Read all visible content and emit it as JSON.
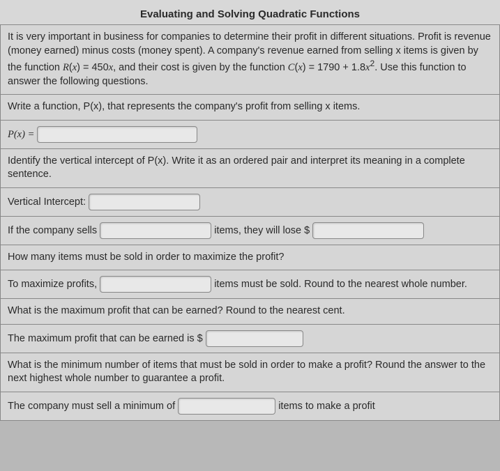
{
  "title": "Evaluating and Solving Quadratic Functions",
  "intro": "It is very important in business for companies to determine their profit in different situations. Profit is revenue (money earned) minus costs (money spent). A company's revenue earned from selling x items is given by the function R(x) = 450x, and their cost is given by the function C(x) = 1790 + 1.8x². Use this function to answer the following questions.",
  "q1": {
    "prompt": "Write a function, P(x), that represents the company's profit from selling x items.",
    "label": "P(x) ="
  },
  "q2": {
    "prompt": "Identify the vertical intercept of P(x). Write it as an ordered pair and interpret its meaning in a complete sentence.",
    "label": "Vertical Intercept:",
    "sentence_a": "If the company sells",
    "sentence_b": "items, they will lose $"
  },
  "q3": {
    "prompt": "How many items must be sold in order to maximize the profit?",
    "sentence_a": "To maximize profits,",
    "sentence_b": "items must be sold. Round to the nearest whole number."
  },
  "q4": {
    "prompt": "What is the maximum profit that can be earned? Round to the nearest cent.",
    "sentence_a": "The maximum profit that can be earned is $"
  },
  "q5": {
    "prompt": "What is the minimum number of items that must be sold in order to make a profit? Round the answer to the next highest whole number to guarantee a profit.",
    "sentence_a": "The company must sell a minimum of",
    "sentence_b": "items to make a profit"
  },
  "style": {
    "bg": "#d6d6d6",
    "border": "#888888",
    "text": "#2a2a2a",
    "input_bg": "#e8e8e8",
    "font_size_body": 14.5,
    "font_size_title": 15
  }
}
